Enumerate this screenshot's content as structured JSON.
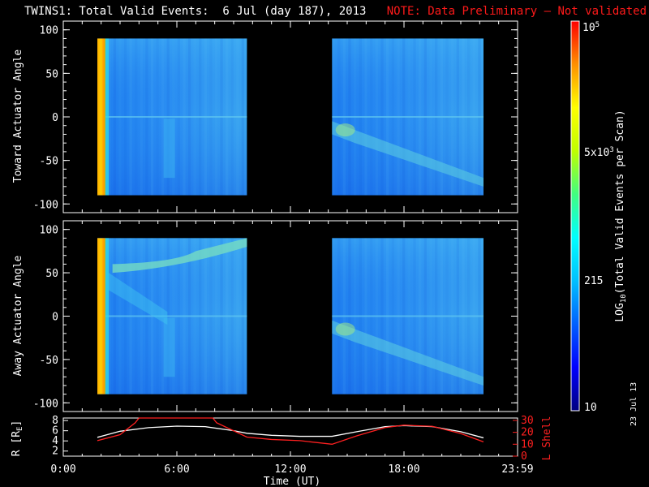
{
  "header": {
    "title": "TWINS1: Total Valid Events:  6 Jul (day 187), 2013",
    "note": "NOTE: Data Preliminary – Not validated",
    "note_color": "#ff1a1a"
  },
  "panels": {
    "top_ylabel": "Toward Actuator Angle",
    "bottom_ylabel": "Away Actuator Angle",
    "yticks": [
      "100",
      "50",
      "0",
      "-50",
      "-100"
    ]
  },
  "orbit": {
    "left_label": "R [R",
    "left_label_sub": "E",
    "left_label_close": "]",
    "right_label": "L Shell",
    "right_color": "#ff2020",
    "left_ticks": [
      "8",
      "6",
      "4",
      "2"
    ],
    "right_ticks": [
      "30",
      "20",
      "10",
      "0"
    ]
  },
  "xaxis": {
    "ticks": [
      "0:00",
      "6:00",
      "12:00",
      "18:00",
      "23:59"
    ],
    "label": "Time (UT)"
  },
  "colorbar": {
    "label_main": "LOG",
    "label_sub": "10",
    "label_rest": "(Total Valid  Events per Scan)",
    "tick_top_base": "10",
    "tick_top_exp": "5",
    "tick_5e3_base": "5x10",
    "tick_5e3_exp": "3",
    "tick_215": "215",
    "tick_10": "10",
    "gradient_colors": [
      "#00007f",
      "#0000ff",
      "#0060ff",
      "#00c0ff",
      "#00ffff",
      "#40ff80",
      "#c0ff00",
      "#ffff00",
      "#ff9000",
      "#ff0000"
    ]
  },
  "footer": {
    "date_stamp": "23 Jul 13"
  },
  "chart_data": [
    {
      "type": "heatmap",
      "name": "Toward Actuator Angle",
      "ylabel": "Toward Actuator Angle",
      "ylim": [
        -110,
        110
      ],
      "xlim": [
        0,
        24
      ],
      "yticks": [
        100,
        50,
        0,
        -50,
        -100
      ],
      "data_windows_ut_hours": [
        [
          1.8,
          9.7
        ],
        [
          14.2,
          22.2
        ]
      ],
      "angle_range": [
        -90,
        90
      ],
      "color_scale": "log",
      "color_range": [
        10,
        100000
      ]
    },
    {
      "type": "heatmap",
      "name": "Away Actuator Angle",
      "ylabel": "Away Actuator Angle",
      "ylim": [
        -110,
        110
      ],
      "xlim": [
        0,
        24
      ],
      "yticks": [
        100,
        50,
        0,
        -50,
        -100
      ],
      "data_windows_ut_hours": [
        [
          1.8,
          9.7
        ],
        [
          14.2,
          22.2
        ]
      ],
      "angle_range": [
        -90,
        90
      ],
      "color_scale": "log",
      "color_range": [
        10,
        100000
      ]
    },
    {
      "type": "line",
      "xlabel": "Time (UT)",
      "xlim": [
        0,
        24
      ],
      "xticks": [
        "0:00",
        "6:00",
        "12:00",
        "18:00",
        "23:59"
      ],
      "series": [
        {
          "name": "R [RE]",
          "color": "#ffffff",
          "axis": "left",
          "ylim": [
            1,
            8.5
          ],
          "x": [
            1.8,
            3,
            4.5,
            6,
            7.5,
            9,
            9.7,
            11,
            12.5,
            14.2,
            15.5,
            17,
            18,
            19.5,
            21,
            22.2
          ],
          "y": [
            4.7,
            5.9,
            6.6,
            6.9,
            6.8,
            6.0,
            5.5,
            5.1,
            4.9,
            4.9,
            5.8,
            6.8,
            7.0,
            6.8,
            5.8,
            4.6
          ]
        },
        {
          "name": "L Shell",
          "color": "#ff2020",
          "axis": "right",
          "ylim": [
            0,
            32
          ],
          "x": [
            1.8,
            3,
            3.8,
            4.0,
            7.9,
            8.1,
            9.7,
            11,
            12.5,
            14.2,
            15.5,
            17,
            18,
            19.5,
            21,
            22.2
          ],
          "y": [
            13,
            18,
            28,
            32,
            32,
            28,
            16,
            14,
            13,
            10,
            17,
            24,
            26,
            25,
            19,
            12
          ]
        }
      ]
    }
  ]
}
